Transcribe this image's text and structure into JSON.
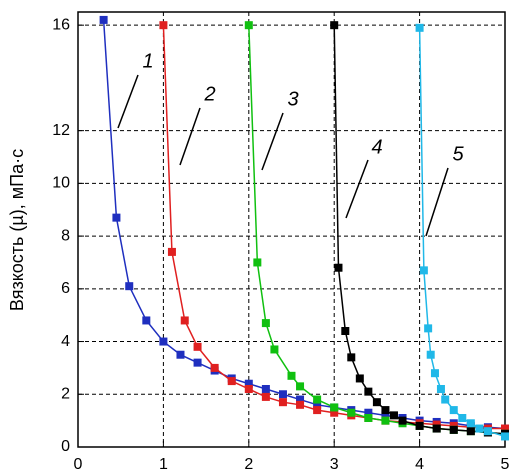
{
  "chart_data": {
    "type": "line",
    "y_label": "Вязкость (µ), мПа·с",
    "xlim": [
      0,
      5
    ],
    "xticks": [
      0,
      1,
      2,
      3,
      4,
      5
    ],
    "ylim": [
      0,
      16.5
    ],
    "yticks": [
      0,
      2,
      4,
      6,
      8,
      10,
      12,
      16
    ],
    "grid": true,
    "annotations": [
      "1",
      "2",
      "3",
      "4",
      "5"
    ],
    "series": [
      {
        "color": "#1f2fbf",
        "x": [
          0.3,
          0.45,
          0.6,
          0.8,
          1.0,
          1.2,
          1.4,
          1.6,
          1.8,
          2.0,
          2.2,
          2.4,
          2.6,
          2.8,
          3.0,
          3.2,
          3.4,
          3.6,
          3.8,
          4.0,
          4.2,
          4.4,
          4.6,
          4.8,
          5.0
        ],
        "values": [
          16.2,
          8.7,
          6.1,
          4.8,
          4.0,
          3.5,
          3.2,
          2.9,
          2.6,
          2.4,
          2.2,
          2.0,
          1.8,
          1.6,
          1.5,
          1.4,
          1.3,
          1.2,
          1.1,
          1.0,
          0.95,
          0.9,
          0.8,
          0.75,
          0.7
        ]
      },
      {
        "color": "#e02020",
        "x": [
          1.0,
          1.1,
          1.25,
          1.4,
          1.6,
          1.8,
          2.0,
          2.2,
          2.4,
          2.6,
          2.8,
          3.0,
          3.2,
          3.4,
          3.6,
          3.8,
          4.0,
          4.2,
          4.4,
          4.6,
          4.8,
          5.0
        ],
        "values": [
          16.0,
          7.4,
          4.8,
          3.8,
          3.0,
          2.5,
          2.2,
          1.9,
          1.7,
          1.6,
          1.4,
          1.3,
          1.2,
          1.1,
          1.0,
          0.95,
          0.9,
          0.85,
          0.8,
          0.75,
          0.7,
          0.7
        ]
      },
      {
        "color": "#10c010",
        "x": [
          2.0,
          2.1,
          2.2,
          2.3,
          2.5,
          2.6,
          2.8,
          3.0,
          3.2,
          3.4,
          3.6,
          3.8,
          4.0,
          4.2,
          4.4,
          4.6,
          4.8,
          5.0
        ],
        "values": [
          16.0,
          7.0,
          4.7,
          3.7,
          2.7,
          2.3,
          1.8,
          1.5,
          1.3,
          1.1,
          1.0,
          0.9,
          0.8,
          0.7,
          0.65,
          0.6,
          0.55,
          0.5
        ]
      },
      {
        "color": "#000000",
        "x": [
          3.0,
          3.05,
          3.13,
          3.2,
          3.3,
          3.4,
          3.5,
          3.6,
          3.7,
          3.8,
          4.0,
          4.2,
          4.4,
          4.6,
          4.8,
          5.0
        ],
        "values": [
          16.0,
          6.8,
          4.4,
          3.4,
          2.6,
          2.1,
          1.7,
          1.4,
          1.2,
          1.0,
          0.8,
          0.7,
          0.65,
          0.6,
          0.55,
          0.5
        ]
      },
      {
        "color": "#20b8e8",
        "x": [
          4.0,
          4.05,
          4.1,
          4.13,
          4.18,
          4.25,
          4.3,
          4.4,
          4.5,
          4.6,
          4.7,
          4.8,
          5.0
        ],
        "values": [
          15.9,
          6.7,
          4.5,
          3.5,
          2.8,
          2.2,
          1.8,
          1.4,
          1.1,
          0.9,
          0.7,
          0.6,
          0.4
        ]
      }
    ]
  }
}
